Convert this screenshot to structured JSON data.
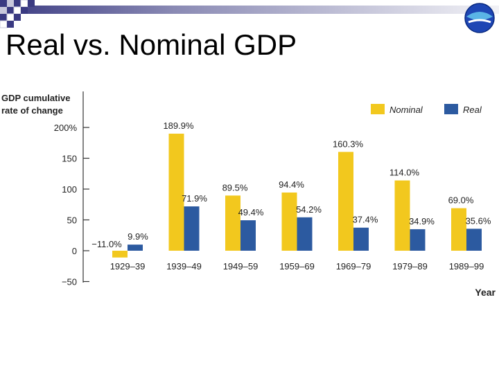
{
  "slide": {
    "title": "Real vs. Nominal GDP",
    "logo_icon": "globe-logo-icon"
  },
  "colors": {
    "nominal": "#F2C81E",
    "real": "#2C5AA0",
    "banner_dark": "#3A3A82",
    "banner_light": "#C8C8DC",
    "logo_blue": "#1E46B4",
    "logo_cyan": "#5AB4E6"
  },
  "chart_data": {
    "type": "bar",
    "ylabel": "GDP cumulative rate of change",
    "xlabel": "Year",
    "ylim": [
      -50,
      200
    ],
    "yticks": [
      200,
      150,
      100,
      50,
      0,
      -50
    ],
    "ytick_labels": [
      "200%",
      "150",
      "100",
      "50",
      "0",
      "−50"
    ],
    "categories": [
      "1929–39",
      "1939–49",
      "1949–59",
      "1959–69",
      "1969–79",
      "1979–89",
      "1989–99"
    ],
    "legend_position": "top-right",
    "grid": false,
    "series": [
      {
        "name": "Nominal",
        "values": [
          -11.0,
          189.9,
          89.5,
          94.4,
          160.3,
          114.0,
          69.0
        ],
        "labels": [
          "−11.0%",
          "189.9%",
          "89.5%",
          "94.4%",
          "160.3%",
          "114.0%",
          "69.0%"
        ]
      },
      {
        "name": "Real",
        "values": [
          9.9,
          71.9,
          49.4,
          54.2,
          37.4,
          34.9,
          35.6
        ],
        "labels": [
          "9.9%",
          "71.9%",
          "49.4%",
          "54.2%",
          "37.4%",
          "34.9%",
          "35.6%"
        ]
      }
    ]
  }
}
